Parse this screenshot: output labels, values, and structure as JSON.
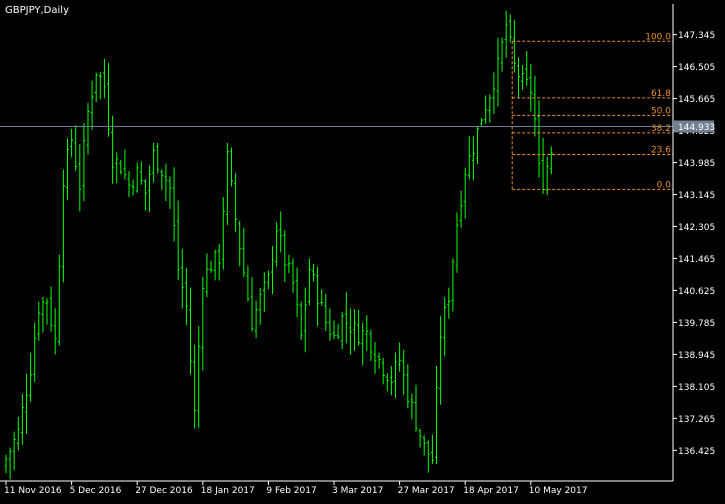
{
  "chart_data": {
    "type": "ohlc",
    "title": "GBPJPY,Daily",
    "y_ticks": [
      147.345,
      146.505,
      145.665,
      144.825,
      143.985,
      143.145,
      142.305,
      141.465,
      140.625,
      139.785,
      138.945,
      138.105,
      137.265,
      136.425
    ],
    "y_tick_labels": [
      "147.345",
      "146.505",
      "145.665",
      "144.825",
      "143.985",
      "143.145",
      "142.305",
      "141.465",
      "140.625",
      "139.785",
      "138.945",
      "138.105",
      "137.265",
      "136.425"
    ],
    "ylim": [
      135.62,
      148.15
    ],
    "x_tick_labels": [
      "11 Nov 2016",
      "5 Dec 2016",
      "27 Dec 2016",
      "18 Jan 2017",
      "9 Feb 2017",
      "3 Mar 2017",
      "27 Mar 2017",
      "18 Apr 2017",
      "10 May 2017"
    ],
    "x_tick_bars": [
      0,
      16,
      32,
      48,
      64,
      80,
      96,
      112,
      128
    ],
    "bar_count": 134,
    "current_price": 144.933,
    "current_price_label": "144.933",
    "anchors": [
      {
        "bar": 0,
        "close": 136.2
      },
      {
        "bar": 3,
        "close": 136.9
      },
      {
        "bar": 6,
        "close": 138.6
      },
      {
        "bar": 8,
        "close": 140.2
      },
      {
        "bar": 10,
        "close": 140.4
      },
      {
        "bar": 12,
        "close": 139.3
      },
      {
        "bar": 14,
        "close": 143.6
      },
      {
        "bar": 16,
        "close": 144.6
      },
      {
        "bar": 18,
        "close": 143.4
      },
      {
        "bar": 20,
        "close": 145.3
      },
      {
        "bar": 22,
        "close": 146.4
      },
      {
        "bar": 24,
        "close": 146.0
      },
      {
        "bar": 26,
        "close": 144.1
      },
      {
        "bar": 28,
        "close": 143.9
      },
      {
        "bar": 30,
        "close": 143.4
      },
      {
        "bar": 32,
        "close": 143.7
      },
      {
        "bar": 34,
        "close": 143.2
      },
      {
        "bar": 36,
        "close": 144.2
      },
      {
        "bar": 38,
        "close": 143.8
      },
      {
        "bar": 40,
        "close": 143.3
      },
      {
        "bar": 42,
        "close": 141.2
      },
      {
        "bar": 44,
        "close": 140.2
      },
      {
        "bar": 46,
        "close": 137.4
      },
      {
        "bar": 48,
        "close": 140.9
      },
      {
        "bar": 50,
        "close": 141.3
      },
      {
        "bar": 52,
        "close": 141.5
      },
      {
        "bar": 54,
        "close": 144.1
      },
      {
        "bar": 56,
        "close": 142.5
      },
      {
        "bar": 58,
        "close": 141.1
      },
      {
        "bar": 60,
        "close": 139.8
      },
      {
        "bar": 62,
        "close": 140.4
      },
      {
        "bar": 64,
        "close": 140.9
      },
      {
        "bar": 66,
        "close": 142.3
      },
      {
        "bar": 68,
        "close": 141.4
      },
      {
        "bar": 70,
        "close": 140.8
      },
      {
        "bar": 72,
        "close": 139.4
      },
      {
        "bar": 74,
        "close": 141.2
      },
      {
        "bar": 76,
        "close": 140.5
      },
      {
        "bar": 78,
        "close": 139.8
      },
      {
        "bar": 80,
        "close": 139.4
      },
      {
        "bar": 82,
        "close": 139.9
      },
      {
        "bar": 84,
        "close": 139.7
      },
      {
        "bar": 86,
        "close": 139.5
      },
      {
        "bar": 88,
        "close": 139.5
      },
      {
        "bar": 90,
        "close": 139.0
      },
      {
        "bar": 92,
        "close": 138.6
      },
      {
        "bar": 94,
        "close": 138.3
      },
      {
        "bar": 96,
        "close": 138.8
      },
      {
        "bar": 98,
        "close": 137.9
      },
      {
        "bar": 100,
        "close": 137.2
      },
      {
        "bar": 102,
        "close": 136.5
      },
      {
        "bar": 104,
        "close": 136.2
      },
      {
        "bar": 106,
        "close": 139.5
      },
      {
        "bar": 108,
        "close": 140.5
      },
      {
        "bar": 110,
        "close": 142.4
      },
      {
        "bar": 112,
        "close": 143.8
      },
      {
        "bar": 114,
        "close": 144.4
      },
      {
        "bar": 116,
        "close": 145.2
      },
      {
        "bar": 118,
        "close": 145.8
      },
      {
        "bar": 120,
        "close": 146.5
      },
      {
        "bar": 122,
        "close": 147.6
      },
      {
        "bar": 124,
        "close": 146.5
      },
      {
        "bar": 126,
        "close": 146.1
      },
      {
        "bar": 128,
        "close": 145.9
      },
      {
        "bar": 129,
        "close": 145.1
      },
      {
        "bar": 130,
        "close": 143.8
      },
      {
        "bar": 131,
        "close": 143.5
      },
      {
        "bar": 132,
        "close": 143.9
      },
      {
        "bar": 133,
        "close": 144.3
      }
    ],
    "fibonacci": {
      "high": 147.17,
      "low": 143.28,
      "levels": [
        {
          "label": "100.0",
          "ratio": 1.0
        },
        {
          "label": "61.8",
          "ratio": 0.618
        },
        {
          "label": "50.0",
          "ratio": 0.5
        },
        {
          "label": "38.2",
          "ratio": 0.382
        },
        {
          "label": "23.6",
          "ratio": 0.236
        },
        {
          "label": "0.0",
          "ratio": 0.0
        }
      ]
    },
    "colors": {
      "background": "#000000",
      "bars": "#00ff00",
      "axis": "#ffffff",
      "text": "#ffffff",
      "fibo": "#e8902a",
      "price_line": "#708090",
      "price_label_bg": "#708090"
    },
    "grid": false
  }
}
